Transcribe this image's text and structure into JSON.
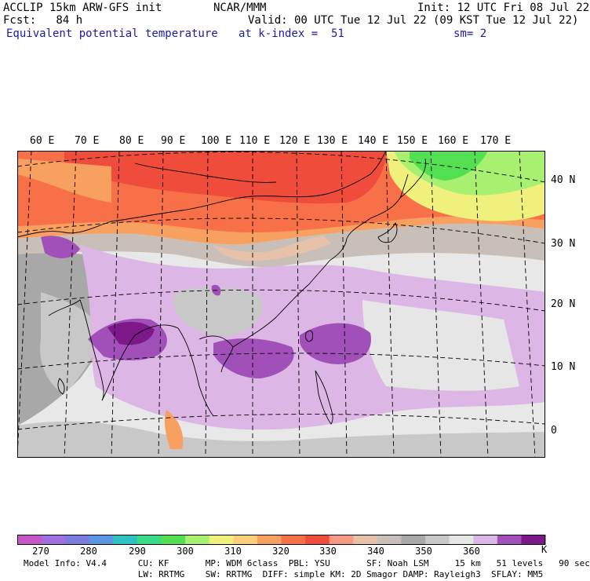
{
  "header": {
    "left_line1": "ACCLIP 15km ARW-GFS init",
    "center_line1": "NCAR/MMM",
    "right_line1": "Init: 12 UTC Fri 08 Jul 22",
    "left_line2": "Fcst:   84 h",
    "right_line2": "Valid: 00 UTC Tue 12 Jul 22 (09 KST Tue 12 Jul 22)",
    "field_name": "Equivalent potential temperature",
    "level": "at k-index =  51",
    "smoothing": "sm= 2"
  },
  "map": {
    "projection": "Mercator-like with lat/lon grid",
    "longitude_labels": [
      "60 E",
      "70 E",
      "80 E",
      "90 E",
      "100 E",
      "110 E",
      "120 E",
      "130 E",
      "140 E",
      "150 E",
      "160 E",
      "170 E"
    ],
    "latitude_labels": [
      "40 N",
      "30 N",
      "20 N",
      "10 N",
      "0"
    ],
    "colors": {
      "background": "#ffffff",
      "land_outline": "#000000",
      "grid_lines": "#000000"
    }
  },
  "colorbar": {
    "unit": "K",
    "tick_labels": [
      "270",
      "280",
      "290",
      "300",
      "310",
      "320",
      "330",
      "340",
      "350",
      "360"
    ],
    "colors": [
      "#c855c8",
      "#a070e0",
      "#7c7ce0",
      "#5a96e6",
      "#2fc2c2",
      "#38dc86",
      "#52e052",
      "#a8f070",
      "#f0f07c",
      "#fad078",
      "#f8a060",
      "#f87048",
      "#f04c3c",
      "#f89a82",
      "#e8c2a8",
      "#c8c0b8",
      "#a8a8a8",
      "#c8c8c8",
      "#e6e6e6",
      "#dcb6e4",
      "#a050b8",
      "#7c1888"
    ]
  },
  "footer": {
    "line1": "Model Info: V4.4      CU: KF       MP: WDM 6class  PBL: YSU       SF: Noah LSM     15 km   51 levels   90 sec",
    "line2": "                      LW: RRTMG    SW: RRTMG  DIFF: simple KM: 2D Smagor DAMP: Rayleigh3  SFLAY: MM5"
  }
}
